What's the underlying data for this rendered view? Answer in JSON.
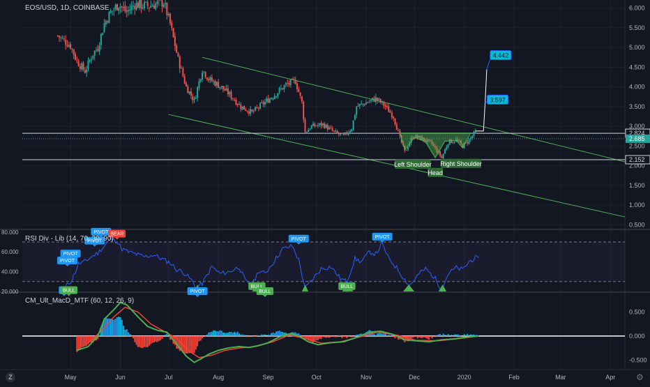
{
  "symbol_label": "EOS/USD, 1D, COINBASE",
  "rsi_label": "RSI Div - Lib (14, 70, 30, 90)",
  "macd_label": "CM_Ult_MacD_MTF (60, 12, 26, 9)",
  "tv_logo": "Z",
  "gear_icon": "gear-icon",
  "colors": {
    "background": "#131722",
    "up": "#26a69a",
    "down": "#ef5350",
    "channel": "#4caf50",
    "rsi_line": "#2962ff",
    "pivot_label": "#2196f3",
    "bull_label": "#4caf50",
    "bear_label": "#f44336",
    "pattern_label": "#2e6b35",
    "macd_line_green": "#4caf50",
    "macd_line_red": "#f44336",
    "hist_blue": "#2196f3",
    "hist_cyan": "#00bcd4",
    "hist_red": "#f44336"
  },
  "chart_data": [
    {
      "type": "candlestick",
      "title": "EOS/USD, 1D, COINBASE",
      "x_ticks": [
        "May",
        "Jun",
        "Jul",
        "Aug",
        "Sep",
        "Oct",
        "Nov",
        "Dec",
        "2020",
        "Feb",
        "Mar",
        "Apr"
      ],
      "x_start": "2019-04-01",
      "x_end": "2020-04-10",
      "y_ticks": [
        "6.000",
        "5.500",
        "5.000",
        "4.500",
        "4.000",
        "3.500",
        "3.000",
        "2.500",
        "2.000",
        "1.500",
        "1.000",
        "0.500"
      ],
      "ylim": [
        0.4,
        6.1
      ],
      "horizontal_levels": [
        {
          "value": 2.824,
          "label": "2.824"
        },
        {
          "value": 2.152,
          "label": "2.152"
        }
      ],
      "current_price": {
        "value": 2.685,
        "label": "2.685"
      },
      "channel": {
        "upper": [
          {
            "x": "2019-07-22",
            "y": 4.75
          },
          {
            "x": "2020-04-10",
            "y": 2.1
          }
        ],
        "lower": [
          {
            "x": "2019-07-01",
            "y": 3.3
          },
          {
            "x": "2020-04-10",
            "y": 0.7
          }
        ]
      },
      "projection": {
        "points": [
          {
            "x": "2020-01-08",
            "y": 2.88
          },
          {
            "x": "2020-01-13",
            "y": 2.88
          },
          {
            "x": "2020-01-14",
            "y": 3.597
          },
          {
            "x": "2020-01-15",
            "y": 4.442
          }
        ],
        "labels": [
          {
            "text": "3.597",
            "y": 3.597
          },
          {
            "text": "4.442",
            "y": 4.442
          }
        ]
      },
      "pattern_labels": [
        "Left Shoulder",
        "Head",
        "Right Shoulder"
      ],
      "price_path": [
        [
          "2019-04-23",
          5.3
        ],
        [
          "2019-05-01",
          5.05
        ],
        [
          "2019-05-05",
          4.65
        ],
        [
          "2019-05-10",
          4.4
        ],
        [
          "2019-05-15",
          4.85
        ],
        [
          "2019-05-18",
          5.0
        ],
        [
          "2019-05-22",
          5.6
        ],
        [
          "2019-05-26",
          5.9
        ],
        [
          "2019-05-31",
          6.1
        ],
        [
          "2019-06-05",
          5.9
        ],
        [
          "2019-06-10",
          6.1
        ],
        [
          "2019-06-18",
          6.05
        ],
        [
          "2019-06-28",
          6.15
        ],
        [
          "2019-07-02",
          5.6
        ],
        [
          "2019-07-07",
          4.7
        ],
        [
          "2019-07-12",
          4.0
        ],
        [
          "2019-07-17",
          3.65
        ],
        [
          "2019-07-22",
          4.45
        ],
        [
          "2019-07-26",
          4.2
        ],
        [
          "2019-08-01",
          4.05
        ],
        [
          "2019-08-07",
          3.85
        ],
        [
          "2019-08-15",
          3.5
        ],
        [
          "2019-08-22",
          3.35
        ],
        [
          "2019-08-28",
          3.55
        ],
        [
          "2019-09-05",
          3.8
        ],
        [
          "2019-09-12",
          4.05
        ],
        [
          "2019-09-18",
          4.15
        ],
        [
          "2019-09-22",
          3.6
        ],
        [
          "2019-09-24",
          2.85
        ],
        [
          "2019-09-28",
          3.0
        ],
        [
          "2019-10-05",
          3.05
        ],
        [
          "2019-10-12",
          2.85
        ],
        [
          "2019-10-18",
          2.75
        ],
        [
          "2019-10-23",
          2.95
        ],
        [
          "2019-10-26",
          3.5
        ],
        [
          "2019-11-01",
          3.6
        ],
        [
          "2019-11-07",
          3.7
        ],
        [
          "2019-11-12",
          3.55
        ],
        [
          "2019-11-18",
          3.25
        ],
        [
          "2019-11-22",
          2.7
        ],
        [
          "2019-11-25",
          2.35
        ],
        [
          "2019-11-30",
          2.75
        ],
        [
          "2019-12-05",
          2.7
        ],
        [
          "2019-12-12",
          2.55
        ],
        [
          "2019-12-18",
          2.2
        ],
        [
          "2019-12-22",
          2.6
        ],
        [
          "2019-12-27",
          2.65
        ],
        [
          "2019-12-31",
          2.5
        ],
        [
          "2020-01-04",
          2.65
        ],
        [
          "2020-01-08",
          2.85
        ]
      ]
    },
    {
      "type": "line",
      "title": "RSI Div - Lib (14, 70, 30, 90)",
      "y_ticks": [
        "80.000",
        "60.000",
        "40.000",
        "20.000"
      ],
      "ylim": [
        20,
        82
      ],
      "bands": [
        70,
        30
      ],
      "series": [
        {
          "values": [
            [
              "2019-04-28",
              25
            ],
            [
              "2019-05-02",
              32
            ],
            [
              "2019-05-06",
              48
            ],
            [
              "2019-05-10",
              50
            ],
            [
              "2019-05-14",
              55
            ],
            [
              "2019-05-18",
              59
            ],
            [
              "2019-05-22",
              66
            ],
            [
              "2019-05-26",
              73
            ],
            [
              "2019-05-30",
              71
            ],
            [
              "2019-06-02",
              63
            ],
            [
              "2019-06-06",
              60
            ],
            [
              "2019-06-10",
              58
            ],
            [
              "2019-06-16",
              55
            ],
            [
              "2019-06-22",
              57
            ],
            [
              "2019-06-28",
              52
            ],
            [
              "2019-07-02",
              49
            ],
            [
              "2019-07-06",
              42
            ],
            [
              "2019-07-10",
              40
            ],
            [
              "2019-07-15",
              32
            ],
            [
              "2019-07-18",
              24
            ],
            [
              "2019-07-22",
              28
            ],
            [
              "2019-07-28",
              45
            ],
            [
              "2019-08-02",
              38
            ],
            [
              "2019-08-08",
              40
            ],
            [
              "2019-08-14",
              45
            ],
            [
              "2019-08-18",
              30
            ],
            [
              "2019-08-22",
              26
            ],
            [
              "2019-08-26",
              41
            ],
            [
              "2019-08-30",
              38
            ],
            [
              "2019-09-04",
              49
            ],
            [
              "2019-09-10",
              63
            ],
            [
              "2019-09-16",
              66
            ],
            [
              "2019-09-20",
              52
            ],
            [
              "2019-09-24",
              23
            ],
            [
              "2019-09-28",
              31
            ],
            [
              "2019-10-04",
              43
            ],
            [
              "2019-10-10",
              45
            ],
            [
              "2019-10-16",
              33
            ],
            [
              "2019-10-20",
              30
            ],
            [
              "2019-10-25",
              53
            ],
            [
              "2019-10-29",
              50
            ],
            [
              "2019-11-03",
              60
            ],
            [
              "2019-11-07",
              58
            ],
            [
              "2019-11-11",
              68
            ],
            [
              "2019-11-15",
              53
            ],
            [
              "2019-11-20",
              44
            ],
            [
              "2019-11-25",
              32
            ],
            [
              "2019-11-28",
              26
            ],
            [
              "2019-12-04",
              38
            ],
            [
              "2019-12-08",
              43
            ],
            [
              "2019-12-14",
              33
            ],
            [
              "2019-12-18",
              22
            ],
            [
              "2019-12-22",
              38
            ],
            [
              "2019-12-27",
              44
            ],
            [
              "2019-12-31",
              42
            ],
            [
              "2020-01-04",
              50
            ],
            [
              "2020-01-08",
              54
            ],
            [
              "2020-01-10",
              52
            ]
          ]
        }
      ],
      "labels": [
        {
          "text": "PIVOT",
          "kind": "pivot",
          "x": "2019-05-20",
          "y": 80
        },
        {
          "text": "PIVOT",
          "kind": "pivot",
          "x": "2019-05-16",
          "y": 71
        },
        {
          "text": "PIVOT",
          "kind": "pivot",
          "x": "2019-05-01",
          "y": 58
        },
        {
          "text": "PIVOT",
          "kind": "pivot",
          "x": "2019-04-29",
          "y": 51
        },
        {
          "text": "BEAR",
          "kind": "bear",
          "x": "2019-05-30",
          "y": 78
        },
        {
          "text": "PIVOT",
          "kind": "pivot",
          "x": "2019-09-20",
          "y": 73
        },
        {
          "text": "PIVOT",
          "kind": "pivot",
          "x": "2019-11-11",
          "y": 75
        },
        {
          "text": "PI",
          "kind": "pivot",
          "x": "2019-04-27",
          "y": 21
        },
        {
          "text": "BULL",
          "kind": "bull",
          "x": "2019-04-30",
          "y": 21
        },
        {
          "text": "PIVOT",
          "kind": "pivot",
          "x": "2019-07-19",
          "y": 20
        },
        {
          "text": "BULL",
          "kind": "bull",
          "x": "2019-08-25",
          "y": 25
        },
        {
          "text": "BULL",
          "kind": "bull",
          "x": "2019-08-30",
          "y": 20
        },
        {
          "text": "BULL",
          "kind": "bull",
          "x": "2019-10-20",
          "y": 25
        }
      ]
    },
    {
      "type": "line",
      "title": "CM_Ult_MacD_MTF (60, 12, 26, 9)",
      "y_ticks": [
        "0.500",
        "0.000",
        "-0.500"
      ],
      "ylim": [
        -0.7,
        0.9
      ],
      "series": [
        {
          "values": [
            [
              "2019-05-05",
              -0.3
            ],
            [
              "2019-05-12",
              -0.22
            ],
            [
              "2019-05-18",
              0.0
            ],
            [
              "2019-05-22",
              0.35
            ],
            [
              "2019-05-28",
              0.55
            ],
            [
              "2019-06-01",
              0.7
            ],
            [
              "2019-06-05",
              0.65
            ],
            [
              "2019-06-12",
              0.4
            ],
            [
              "2019-06-18",
              0.2
            ],
            [
              "2019-06-24",
              0.12
            ],
            [
              "2019-06-30",
              0.08
            ],
            [
              "2019-07-04",
              -0.08
            ],
            [
              "2019-07-08",
              -0.25
            ],
            [
              "2019-07-12",
              -0.42
            ],
            [
              "2019-07-17",
              -0.55
            ],
            [
              "2019-07-21",
              -0.48
            ],
            [
              "2019-07-26",
              -0.38
            ],
            [
              "2019-08-01",
              -0.3
            ],
            [
              "2019-08-07",
              -0.25
            ],
            [
              "2019-08-14",
              -0.22
            ],
            [
              "2019-08-20",
              -0.24
            ],
            [
              "2019-08-26",
              -0.2
            ],
            [
              "2019-09-01",
              -0.14
            ],
            [
              "2019-09-08",
              -0.02
            ],
            [
              "2019-09-15",
              0.05
            ],
            [
              "2019-09-20",
              0.0
            ],
            [
              "2019-09-26",
              -0.12
            ],
            [
              "2019-10-02",
              -0.18
            ],
            [
              "2019-10-10",
              -0.14
            ],
            [
              "2019-10-18",
              -0.12
            ],
            [
              "2019-10-26",
              -0.03
            ],
            [
              "2019-11-03",
              0.08
            ],
            [
              "2019-11-10",
              0.1
            ],
            [
              "2019-11-18",
              0.03
            ],
            [
              "2019-11-25",
              -0.08
            ],
            [
              "2019-12-02",
              -0.1
            ],
            [
              "2019-12-10",
              -0.12
            ],
            [
              "2019-12-18",
              -0.08
            ],
            [
              "2019-12-26",
              -0.06
            ],
            [
              "2020-01-03",
              -0.02
            ],
            [
              "2020-01-10",
              0.0
            ]
          ]
        },
        {
          "values": [
            [
              "2019-05-12",
              -0.15
            ],
            [
              "2019-05-20",
              0.1
            ],
            [
              "2019-05-28",
              0.4
            ],
            [
              "2019-06-04",
              0.6
            ],
            [
              "2019-06-12",
              0.5
            ],
            [
              "2019-06-20",
              0.25
            ],
            [
              "2019-06-28",
              0.1
            ],
            [
              "2019-07-06",
              -0.05
            ],
            [
              "2019-07-14",
              -0.32
            ],
            [
              "2019-07-20",
              -0.45
            ],
            [
              "2019-07-28",
              -0.4
            ],
            [
              "2019-08-05",
              -0.3
            ],
            [
              "2019-08-14",
              -0.25
            ],
            [
              "2019-08-24",
              -0.22
            ],
            [
              "2019-09-04",
              -0.12
            ],
            [
              "2019-09-14",
              0.02
            ],
            [
              "2019-09-24",
              -0.05
            ],
            [
              "2019-10-04",
              -0.15
            ],
            [
              "2019-10-16",
              -0.12
            ],
            [
              "2019-10-28",
              -0.02
            ],
            [
              "2019-11-08",
              0.08
            ],
            [
              "2019-11-20",
              0.02
            ],
            [
              "2019-12-02",
              -0.09
            ],
            [
              "2019-12-16",
              -0.1
            ],
            [
              "2019-12-30",
              -0.05
            ],
            [
              "2020-01-10",
              0.0
            ]
          ]
        }
      ]
    }
  ]
}
